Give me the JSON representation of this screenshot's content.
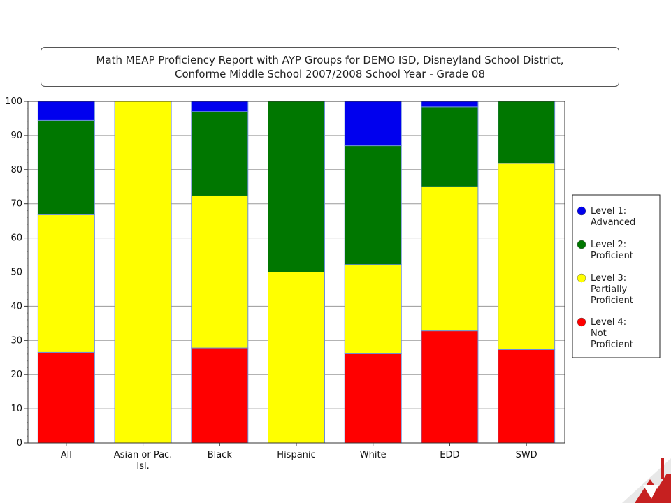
{
  "chart_data": {
    "type": "bar",
    "stacked": true,
    "title_line1": "Math MEAP Proficiency Report with AYP Groups for DEMO ISD, Disneyland School District,",
    "title_line2": "Conforme Middle School 2007/2008 School Year - Grade 08",
    "categories": [
      "All",
      "Asian or Pac. Isl.",
      "Black",
      "Hispanic",
      "White",
      "EDD",
      "SWD"
    ],
    "category_label_lines": [
      [
        "All"
      ],
      [
        "Asian or Pac.",
        "Isl."
      ],
      [
        "Black"
      ],
      [
        "Hispanic"
      ],
      [
        "White"
      ],
      [
        "EDD"
      ],
      [
        "SWD"
      ]
    ],
    "ylim": [
      0,
      100
    ],
    "yticks": [
      0,
      10,
      20,
      30,
      40,
      50,
      60,
      70,
      80,
      90,
      100
    ],
    "grid": true,
    "legend_position": "right",
    "series": [
      {
        "name": "Level 4: Not Proficient",
        "legend_lines": [
          "Level 4:",
          "Not",
          "Proficient"
        ],
        "color": "#ff0000",
        "values": [
          26.5,
          0,
          27.8,
          0,
          26.1,
          32.8,
          27.3
        ]
      },
      {
        "name": "Level 3: Partially Proficient",
        "legend_lines": [
          "Level 3:",
          "Partially",
          "Proficient"
        ],
        "color": "#ffff00",
        "values": [
          40.3,
          100,
          44.5,
          50,
          26.1,
          42.2,
          54.5
        ]
      },
      {
        "name": "Level 2: Proficient",
        "legend_lines": [
          "Level 2:",
          "Proficient"
        ],
        "color": "#007700",
        "values": [
          27.6,
          0,
          24.7,
          50,
          34.8,
          23.4,
          18.2
        ]
      },
      {
        "name": "Level 1: Advanced",
        "legend_lines": [
          "Level 1:",
          "Advanced"
        ],
        "color": "#0000ee",
        "values": [
          5.6,
          0,
          3.0,
          0,
          13.0,
          1.6,
          0
        ]
      }
    ]
  }
}
